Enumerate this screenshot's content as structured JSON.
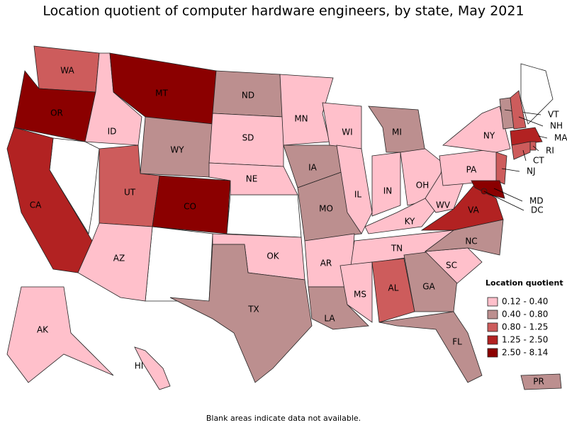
{
  "title": "Location quotient of computer hardware engineers, by state, May 2021",
  "note": "Blank areas indicate data not available.",
  "legend": {
    "title": "Location quotient",
    "items": [
      {
        "label": "0.12 - 0.40",
        "color": "#ffc0cb"
      },
      {
        "label": "0.40 - 0.80",
        "color": "#bc8f8f"
      },
      {
        "label": "0.80 - 1.25",
        "color": "#cd5c5c"
      },
      {
        "label": "1.25 - 2.50",
        "color": "#b22222"
      },
      {
        "label": "2.50 - 8.14",
        "color": "#8b0000"
      }
    ]
  },
  "states": [
    {
      "label": "WA",
      "color": "#cd5c5c"
    },
    {
      "label": "OR",
      "color": "#8b0000"
    },
    {
      "label": "CA",
      "color": "#b22222"
    },
    {
      "label": "ID",
      "color": "#ffc0cb"
    },
    {
      "label": "MT",
      "color": "#8b0000"
    },
    {
      "label": "WY",
      "color": "#bc8f8f"
    },
    {
      "label": "UT",
      "color": "#cd5c5c"
    },
    {
      "label": "CO",
      "color": "#8b0000"
    },
    {
      "label": "AZ",
      "color": "#ffc0cb"
    },
    {
      "label": "ND",
      "color": "#bc8f8f"
    },
    {
      "label": "SD",
      "color": "#ffc0cb"
    },
    {
      "label": "NE",
      "color": "#ffc0cb"
    },
    {
      "label": "OK",
      "color": "#ffc0cb"
    },
    {
      "label": "TX",
      "color": "#bc8f8f"
    },
    {
      "label": "MN",
      "color": "#ffc0cb"
    },
    {
      "label": "IA",
      "color": "#bc8f8f"
    },
    {
      "label": "MO",
      "color": "#bc8f8f"
    },
    {
      "label": "AR",
      "color": "#ffc0cb"
    },
    {
      "label": "LA",
      "color": "#bc8f8f"
    },
    {
      "label": "WI",
      "color": "#ffc0cb"
    },
    {
      "label": "IL",
      "color": "#ffc0cb"
    },
    {
      "label": "MI",
      "color": "#bc8f8f"
    },
    {
      "label": "IN",
      "color": "#ffc0cb"
    },
    {
      "label": "OH",
      "color": "#ffc0cb"
    },
    {
      "label": "KY",
      "color": "#ffc0cb"
    },
    {
      "label": "TN",
      "color": "#ffc0cb"
    },
    {
      "label": "MS",
      "color": "#ffc0cb"
    },
    {
      "label": "AL",
      "color": "#cd5c5c"
    },
    {
      "label": "GA",
      "color": "#bc8f8f"
    },
    {
      "label": "FL",
      "color": "#bc8f8f"
    },
    {
      "label": "SC",
      "color": "#ffc0cb"
    },
    {
      "label": "NC",
      "color": "#bc8f8f"
    },
    {
      "label": "VA",
      "color": "#b22222"
    },
    {
      "label": "WV",
      "color": "#ffc0cb"
    },
    {
      "label": "PA",
      "color": "#ffc0cb"
    },
    {
      "label": "NY",
      "color": "#ffc0cb"
    },
    {
      "label": "VT",
      "color": "#bc8f8f"
    },
    {
      "label": "NH",
      "color": "#cd5c5c"
    },
    {
      "label": "MA",
      "color": "#b22222"
    },
    {
      "label": "RI",
      "color": "#cd5c5c"
    },
    {
      "label": "CT",
      "color": "#cd5c5c"
    },
    {
      "label": "NJ",
      "color": "#cd5c5c"
    },
    {
      "label": "MD",
      "color": "#8b0000"
    },
    {
      "label": "DC",
      "color": "#8b0000"
    },
    {
      "label": "AK",
      "color": "#ffc0cb"
    },
    {
      "label": "HI",
      "color": "#ffc0cb"
    },
    {
      "label": "PR",
      "color": "#bc8f8f"
    }
  ]
}
